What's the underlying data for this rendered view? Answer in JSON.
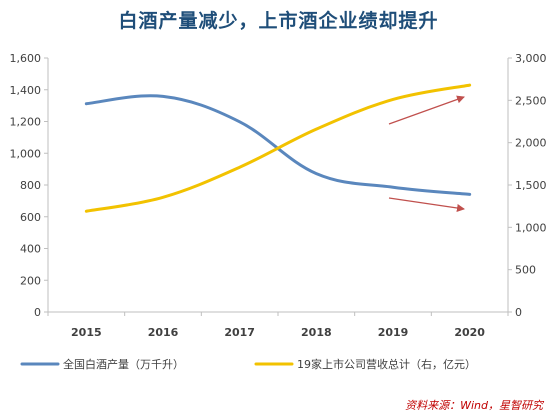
{
  "chart_data": {
    "type": "line",
    "title": "白酒产量减少，上市酒企业绩却提升",
    "categories": [
      "2015",
      "2016",
      "2017",
      "2018",
      "2019",
      "2020"
    ],
    "series": [
      {
        "name": "全国白酒产量（万千升）",
        "axis": "left",
        "color": "#5a87bd",
        "values": [
          1312,
          1358,
          1198,
          872,
          786,
          741
        ]
      },
      {
        "name": "19家上市公司营收总计（右，亿元）",
        "axis": "right",
        "color": "#f2c200",
        "values": [
          1190,
          1355,
          1710,
          2160,
          2510,
          2680
        ]
      }
    ],
    "yleft": {
      "lim": [
        0,
        1600
      ],
      "ticks": [
        0,
        200,
        400,
        600,
        800,
        1000,
        1200,
        1400,
        1600
      ],
      "labels": [
        "0",
        "200",
        "400",
        "600",
        "800",
        "1,000",
        "1,200",
        "1,400",
        "1,600"
      ]
    },
    "yright": {
      "lim": [
        0,
        3000
      ],
      "ticks": [
        0,
        500,
        1000,
        1500,
        2000,
        2500,
        3000
      ],
      "labels": [
        "0",
        "500",
        "1,000",
        "1,500",
        "2,000",
        "2,500",
        "3,000"
      ]
    },
    "grid": false,
    "legend": "bottom",
    "arrow_color": "#c0504d"
  },
  "source": "资料来源：Wind，星智研究"
}
